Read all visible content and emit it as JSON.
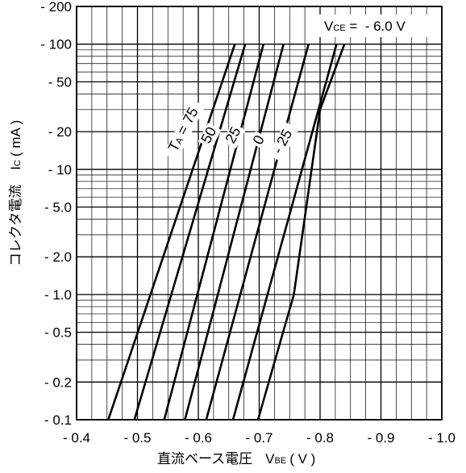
{
  "chart_data": {
    "type": "line",
    "title": "",
    "xlabel": "直流ベース電圧",
    "xlabel_symbol": "V",
    "xlabel_symbol_sub": "BE",
    "xlabel_unit": "( V )",
    "ylabel": "コレクタ電流",
    "ylabel_symbol": "I",
    "ylabel_symbol_sub": "C",
    "ylabel_unit": "( mA )",
    "xlim": [
      -0.4,
      -1.0
    ],
    "ylim": [
      0.1,
      200
    ],
    "y_scale": "log",
    "grid": true,
    "x_ticks": [
      {
        "value": -0.4,
        "label": "- 0.4"
      },
      {
        "value": -0.5,
        "label": "- 0.5"
      },
      {
        "value": -0.6,
        "label": "- 0.6"
      },
      {
        "value": -0.7,
        "label": "- 0.7"
      },
      {
        "value": -0.8,
        "label": "- 0.8"
      },
      {
        "value": -0.9,
        "label": "- 0.9"
      },
      {
        "value": -1.0,
        "label": "- 1.0"
      }
    ],
    "y_ticks": [
      {
        "value": 200,
        "label": "- 200"
      },
      {
        "value": 100,
        "label": "- 100"
      },
      {
        "value": 50,
        "label": "- 50"
      },
      {
        "value": 20,
        "label": "- 20"
      },
      {
        "value": 10,
        "label": "- 10"
      },
      {
        "value": 5,
        "label": "- 5.0"
      },
      {
        "value": 2,
        "label": "- 2.0"
      },
      {
        "value": 1,
        "label": "- 1.0"
      },
      {
        "value": 0.5,
        "label": "- 0.5"
      },
      {
        "value": 0.2,
        "label": "- 0.2"
      },
      {
        "value": 0.1,
        "label": "- 0.1"
      }
    ],
    "condition": {
      "symbol": "V",
      "sub": "CE",
      "text": " =  - 6.0 V"
    },
    "series_param_prefix": "T",
    "series_param_sub": "A",
    "series_param_eq": " = ",
    "series": [
      {
        "name": "75",
        "points": [
          {
            "x": -0.452,
            "y": 0.1
          },
          {
            "x": -0.66,
            "y": 100
          }
        ]
      },
      {
        "name": "50",
        "points": [
          {
            "x": -0.495,
            "y": 0.1
          },
          {
            "x": -0.677,
            "y": 100
          }
        ]
      },
      {
        "name": "25",
        "points": [
          {
            "x": -0.544,
            "y": 0.1
          },
          {
            "x": -0.707,
            "y": 100
          }
        ]
      },
      {
        "name": "0",
        "points": [
          {
            "x": -0.578,
            "y": 0.1
          },
          {
            "x": -0.74,
            "y": 100
          }
        ]
      },
      {
        "name": "- 25",
        "points": [
          {
            "x": -0.613,
            "y": 0.1
          },
          {
            "x": -0.781,
            "y": 100
          }
        ]
      },
      {
        "name": "",
        "points": [
          {
            "x": -0.657,
            "y": 0.1
          },
          {
            "x": -0.827,
            "y": 100
          }
        ]
      },
      {
        "name": "",
        "points": [
          {
            "x": -0.698,
            "y": 0.1
          },
          {
            "x": -0.757,
            "y": 1
          },
          {
            "x": -0.8,
            "y": 30
          },
          {
            "x": -0.84,
            "y": 100
          }
        ]
      }
    ],
    "curve_labels": [
      {
        "text": "T",
        "sub": "A",
        "tail": " = 75",
        "x": -0.582,
        "y": 20
      },
      {
        "text": "50",
        "x": -0.624,
        "y": 18
      },
      {
        "text": "25",
        "x": -0.664,
        "y": 18
      },
      {
        "text": "0",
        "x": -0.706,
        "y": 16.5
      },
      {
        "text": "- 25",
        "x": -0.745,
        "y": 16
      }
    ]
  }
}
